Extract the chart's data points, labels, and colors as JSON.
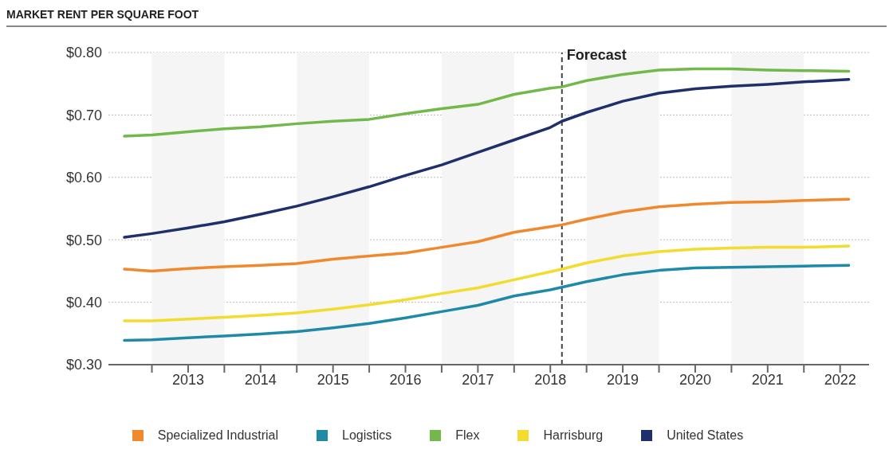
{
  "chart_data": {
    "type": "line",
    "title": "MARKET RENT PER SQUARE FOOT",
    "x": [
      2012.62,
      2013,
      2013.5,
      2014,
      2014.5,
      2015,
      2015.5,
      2016,
      2016.5,
      2017,
      2017.5,
      2018,
      2018.5,
      2018.66,
      2019,
      2019.5,
      2020,
      2020.5,
      2021,
      2021.5,
      2022,
      2022.62
    ],
    "series": [
      {
        "name": "Specialized Industrial",
        "color": "#f0892e",
        "values": [
          0.453,
          0.45,
          0.454,
          0.457,
          0.459,
          0.462,
          0.469,
          0.474,
          0.479,
          0.488,
          0.497,
          0.512,
          0.521,
          0.524,
          0.533,
          0.545,
          0.553,
          0.557,
          0.56,
          0.561,
          0.563,
          0.565
        ]
      },
      {
        "name": "Logistics",
        "color": "#1f8aa8",
        "values": [
          0.339,
          0.34,
          0.343,
          0.346,
          0.349,
          0.353,
          0.359,
          0.366,
          0.375,
          0.385,
          0.395,
          0.41,
          0.42,
          0.424,
          0.433,
          0.444,
          0.451,
          0.455,
          0.456,
          0.457,
          0.458,
          0.459
        ]
      },
      {
        "name": "Flex",
        "color": "#72b84a",
        "values": [
          0.666,
          0.668,
          0.673,
          0.678,
          0.681,
          0.686,
          0.69,
          0.693,
          0.702,
          0.71,
          0.717,
          0.733,
          0.743,
          0.745,
          0.755,
          0.765,
          0.772,
          0.774,
          0.774,
          0.772,
          0.771,
          0.77
        ]
      },
      {
        "name": "Harrisburg",
        "color": "#f2dc2e",
        "values": [
          0.37,
          0.37,
          0.373,
          0.376,
          0.379,
          0.383,
          0.389,
          0.396,
          0.404,
          0.414,
          0.423,
          0.436,
          0.449,
          0.453,
          0.463,
          0.474,
          0.481,
          0.485,
          0.487,
          0.488,
          0.488,
          0.49
        ]
      },
      {
        "name": "United States",
        "color": "#1e2f6b",
        "values": [
          0.504,
          0.51,
          0.519,
          0.529,
          0.541,
          0.554,
          0.569,
          0.585,
          0.603,
          0.62,
          0.64,
          0.66,
          0.68,
          0.69,
          0.704,
          0.722,
          0.735,
          0.742,
          0.746,
          0.749,
          0.753,
          0.757
        ]
      }
    ],
    "xlim": [
      2012.4,
      2022.9
    ],
    "xticks": [
      {
        "value": 2013,
        "label": null
      },
      {
        "value": 2013.5,
        "label": "2013"
      },
      {
        "value": 2014,
        "label": null
      },
      {
        "value": 2014.5,
        "label": "2014"
      },
      {
        "value": 2015,
        "label": null
      },
      {
        "value": 2015.5,
        "label": "2015"
      },
      {
        "value": 2016,
        "label": null
      },
      {
        "value": 2016.5,
        "label": "2016"
      },
      {
        "value": 2017,
        "label": null
      },
      {
        "value": 2017.5,
        "label": "2017"
      },
      {
        "value": 2018,
        "label": null
      },
      {
        "value": 2018.5,
        "label": "2018"
      },
      {
        "value": 2019,
        "label": null
      },
      {
        "value": 2019.5,
        "label": "2019"
      },
      {
        "value": 2020,
        "label": null
      },
      {
        "value": 2020.5,
        "label": "2020"
      },
      {
        "value": 2021,
        "label": null
      },
      {
        "value": 2021.5,
        "label": "2021"
      },
      {
        "value": 2022,
        "label": null
      },
      {
        "value": 2022.5,
        "label": "2022"
      }
    ],
    "ylim": [
      0.3,
      0.8
    ],
    "yticks": [
      {
        "value": 0.3,
        "label": "$0.30"
      },
      {
        "value": 0.4,
        "label": "$0.40"
      },
      {
        "value": 0.5,
        "label": "$0.50"
      },
      {
        "value": 0.6,
        "label": "$0.60"
      },
      {
        "value": 0.7,
        "label": "$0.70"
      },
      {
        "value": 0.8,
        "label": "$0.80"
      }
    ],
    "ref_lines": [
      {
        "axis": "x",
        "value": 2018.66,
        "label": "Forecast",
        "color": "#444444",
        "line_style": "dashed"
      }
    ],
    "bands": [
      {
        "axis": "x",
        "from": 2013,
        "to": 2014,
        "color": "#f5f5f5"
      },
      {
        "axis": "x",
        "from": 2015,
        "to": 2016,
        "color": "#f5f5f5"
      },
      {
        "axis": "x",
        "from": 2017,
        "to": 2018,
        "color": "#f5f5f5"
      },
      {
        "axis": "x",
        "from": 2019,
        "to": 2020,
        "color": "#f5f5f5"
      },
      {
        "axis": "x",
        "from": 2021,
        "to": 2022,
        "color": "#f5f5f5"
      }
    ],
    "grid": "y",
    "legend": "bottom",
    "marker": "none",
    "line_style": "solid"
  }
}
